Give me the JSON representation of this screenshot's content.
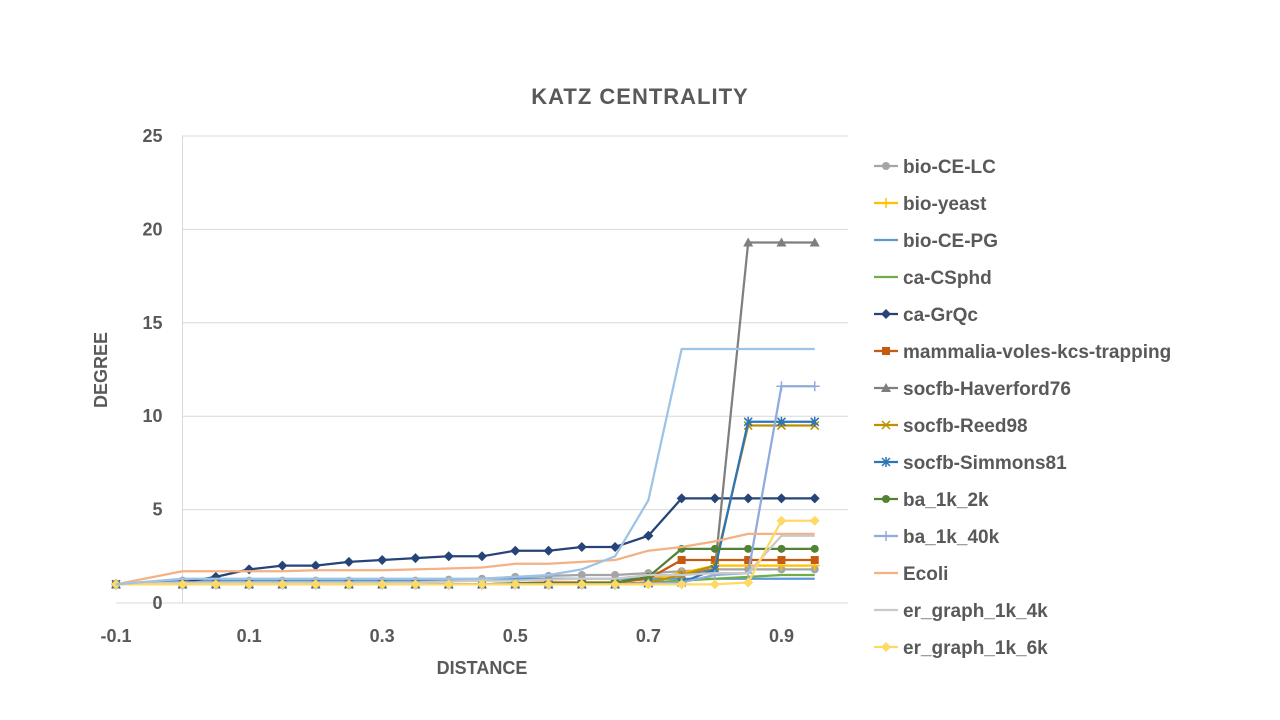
{
  "chart_data": {
    "type": "line",
    "title": "KATZ CENTRALITY",
    "xlabel": "DISTANCE",
    "ylabel": "DEGREE",
    "xlim": [
      -0.1,
      1.0
    ],
    "ylim": [
      0,
      25
    ],
    "x_ticks": [
      -0.1,
      0.1,
      0.3,
      0.5,
      0.7,
      0.9
    ],
    "x_tick_labels": [
      "-0.1",
      "0.1",
      "0.3",
      "0.5",
      "0.7",
      "0.9"
    ],
    "y_ticks": [
      0,
      5,
      10,
      15,
      20,
      25
    ],
    "y_tick_labels": [
      "0",
      "5",
      "10",
      "15",
      "20",
      "25"
    ],
    "grid": "horizontal",
    "legend": "right",
    "x": [
      -0.1,
      0,
      0.05,
      0.1,
      0.15,
      0.2,
      0.25,
      0.3,
      0.35,
      0.4,
      0.45,
      0.5,
      0.55,
      0.6,
      0.65,
      0.7,
      0.75,
      0.8,
      0.85,
      0.9,
      0.95
    ],
    "series": [
      {
        "name": "bio-CE-LC",
        "color": "#a5a5a5",
        "marker": "circle",
        "values": [
          1,
          1.2,
          1.2,
          1.2,
          1.2,
          1.2,
          1.2,
          1.2,
          1.2,
          1.25,
          1.3,
          1.4,
          1.45,
          1.5,
          1.5,
          1.6,
          1.7,
          1.8,
          1.8,
          1.8,
          1.8
        ]
      },
      {
        "name": "bio-yeast",
        "color": "#ffc000",
        "marker": "plus",
        "values": [
          1,
          1,
          1,
          1,
          1,
          1,
          1,
          1,
          1,
          1,
          1,
          1.05,
          1.1,
          1.1,
          1.1,
          1.3,
          1.6,
          2.0,
          2.0,
          2.0,
          2.0
        ]
      },
      {
        "name": "bio-CE-PG",
        "color": "#5b9bd5",
        "marker": "none",
        "values": [
          1,
          1.2,
          1.2,
          1.2,
          1.2,
          1.2,
          1.2,
          1.2,
          1.2,
          1.2,
          1.2,
          1.3,
          1.3,
          1.3,
          1.3,
          1.3,
          1.3,
          1.3,
          1.3,
          1.3,
          1.3
        ]
      },
      {
        "name": "ca-CSphd",
        "color": "#70ad47",
        "marker": "none",
        "values": [
          1,
          1,
          1,
          1,
          1,
          1,
          1,
          1,
          1,
          1,
          1,
          1,
          1,
          1,
          1,
          1.1,
          1.2,
          1.3,
          1.4,
          1.5,
          1.5
        ]
      },
      {
        "name": "ca-GrQc",
        "color": "#264478",
        "marker": "diamond",
        "values": [
          1,
          1.1,
          1.4,
          1.8,
          2.0,
          2.0,
          2.2,
          2.3,
          2.4,
          2.5,
          2.5,
          2.8,
          2.8,
          3.0,
          3.0,
          3.6,
          5.6,
          5.6,
          5.6,
          5.6,
          5.6
        ]
      },
      {
        "name": "mammalia-voles-kcs-trapping",
        "color": "#c55a11",
        "marker": "square",
        "values": [
          1,
          1,
          1,
          1,
          1,
          1,
          1,
          1,
          1,
          1,
          1,
          1.05,
          1.1,
          1.1,
          1.1,
          1.3,
          2.3,
          2.3,
          2.3,
          2.3,
          2.3
        ]
      },
      {
        "name": "socfb-Haverford76",
        "color": "#7f7f7f",
        "marker": "triangle",
        "values": [
          1,
          1,
          1,
          1,
          1,
          1,
          1,
          1,
          1,
          1,
          1,
          1,
          1,
          1,
          1,
          1.1,
          1.5,
          1.8,
          19.3,
          19.3,
          19.3
        ]
      },
      {
        "name": "socfb-Reed98",
        "color": "#bf9000",
        "marker": "x",
        "values": [
          1,
          1,
          1,
          1,
          1,
          1,
          1,
          1,
          1,
          1,
          1,
          1,
          1,
          1,
          1,
          1.1,
          1.5,
          2.0,
          9.5,
          9.5,
          9.5
        ]
      },
      {
        "name": "socfb-Simmons81",
        "color": "#2e75b6",
        "marker": "star",
        "values": [
          1,
          1,
          1,
          1,
          1,
          1,
          1,
          1,
          1,
          1,
          1,
          1,
          1,
          1,
          1,
          1.05,
          1.1,
          1.8,
          9.7,
          9.7,
          9.7
        ]
      },
      {
        "name": "ba_1k_2k",
        "color": "#548235",
        "marker": "circle",
        "values": [
          1,
          1,
          1,
          1,
          1,
          1,
          1,
          1,
          1,
          1,
          1,
          1.05,
          1.05,
          1.05,
          1.1,
          1.4,
          2.9,
          2.9,
          2.9,
          2.9,
          2.9
        ]
      },
      {
        "name": "ba_1k_40k",
        "color": "#8faadc",
        "marker": "plus",
        "values": [
          1,
          1,
          1,
          1,
          1,
          1,
          1,
          1,
          1,
          1,
          1,
          1,
          1,
          1,
          1,
          1.05,
          1.1,
          1.5,
          1.6,
          11.6,
          11.6
        ]
      },
      {
        "name": "Ecoli",
        "color": "#f4b183",
        "marker": "none",
        "values": [
          1,
          1.7,
          1.7,
          1.7,
          1.7,
          1.75,
          1.75,
          1.75,
          1.8,
          1.85,
          1.9,
          2.1,
          2.1,
          2.2,
          2.3,
          2.8,
          3.0,
          3.3,
          3.7,
          3.7,
          3.7
        ]
      },
      {
        "name": "er_graph_1k_4k",
        "color": "#c9c9c9",
        "marker": "none",
        "values": [
          1,
          1.1,
          1.1,
          1.1,
          1.1,
          1.1,
          1.1,
          1.1,
          1.1,
          1.15,
          1.2,
          1.2,
          1.25,
          1.3,
          1.3,
          1.5,
          1.5,
          1.6,
          1.6,
          3.6,
          3.6
        ]
      },
      {
        "name": "er_graph_1k_6k",
        "color": "#ffd966",
        "marker": "diamond",
        "values": [
          1,
          1,
          1,
          1,
          1,
          1,
          1,
          1,
          1,
          1,
          1,
          1,
          1,
          1,
          1,
          1,
          1,
          1,
          1.1,
          4.4,
          4.4
        ]
      },
      {
        "name": "",
        "color": "#9dc3e6",
        "marker": "none",
        "values": [
          1,
          1.3,
          1.3,
          1.3,
          1.3,
          1.3,
          1.3,
          1.3,
          1.3,
          1.3,
          1.3,
          1.4,
          1.5,
          1.8,
          2.5,
          5.5,
          13.6,
          13.6,
          13.6,
          13.6,
          13.6
        ]
      }
    ]
  }
}
